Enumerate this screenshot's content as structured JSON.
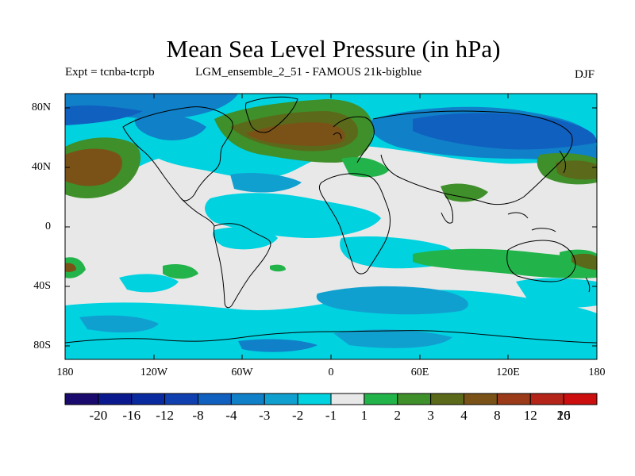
{
  "title": "Mean Sea Level Pressure (in hPa)",
  "expt": "Expt = tcnba-tcrpb",
  "run": "LGM_ensemble_2_51 - FAMOUS 21k-bigblue",
  "season": "DJF",
  "lat_labels": [
    "80N",
    "40N",
    "0",
    "40S",
    "80S"
  ],
  "lon_labels": [
    "180",
    "120W",
    "60W",
    "0",
    "60E",
    "120E",
    "180"
  ],
  "colorbar": {
    "labels": [
      "-20",
      "-16",
      "-12",
      "-8",
      "-4",
      "-3",
      "-2",
      "-1",
      "1",
      "2",
      "3",
      "4",
      "8",
      "12",
      "16",
      "20"
    ],
    "colors": [
      "#1a0a6e",
      "#0a1a8e",
      "#0a2aa0",
      "#1040b0",
      "#1060c0",
      "#1080c8",
      "#10a0d0",
      "#00d2e0",
      "#e8e8e8",
      "#22b44a",
      "#3f8f2a",
      "#5a6a1a",
      "#7a5218",
      "#9a3a18",
      "#b42418",
      "#cc0e0e"
    ]
  },
  "map_colors": {
    "neutral": "#e8e8e8",
    "cyan": "#00d2e0",
    "light_blue": "#10a0d0",
    "mid_blue": "#1080c8",
    "blue": "#1060c0",
    "green": "#22b44a",
    "dark_green": "#3f8f2a",
    "olive": "#5a6a1a",
    "brown": "#7a5218"
  }
}
